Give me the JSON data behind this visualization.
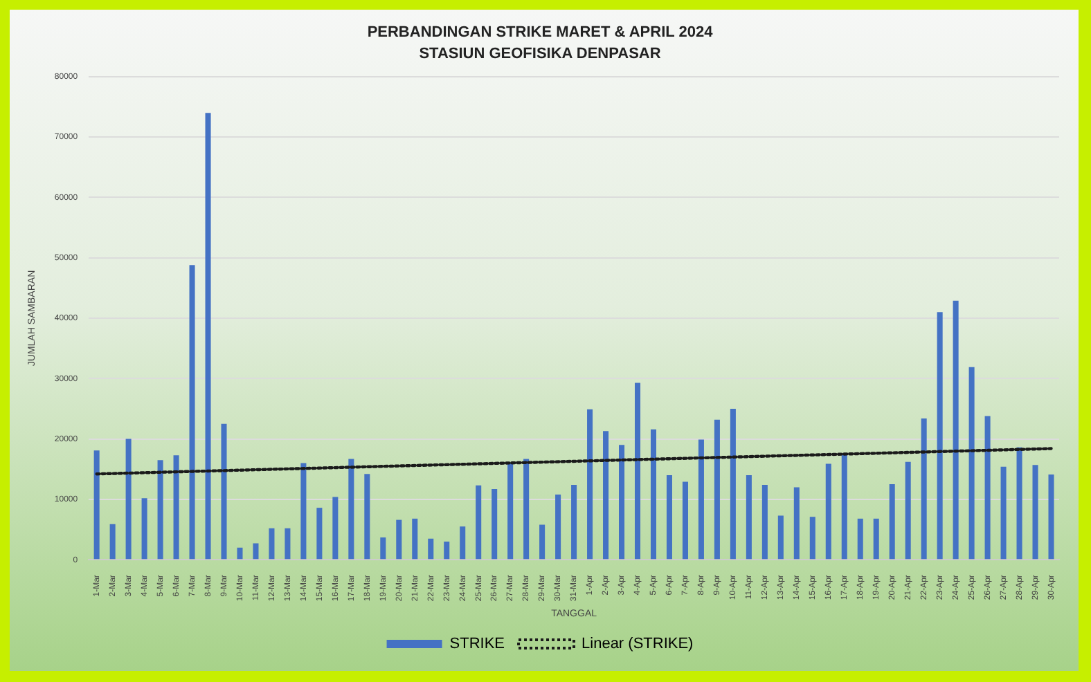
{
  "chart_data": {
    "type": "bar",
    "title": "PERBANDINGAN STRIKE MARET & APRIL 2024",
    "subtitle": "STASIUN GEOFISIKA DENPASAR",
    "xlabel": "TANGGAL",
    "ylabel": "JUMLAH SAMBARAN",
    "categories": [
      "1-Mar",
      "2-Mar",
      "3-Mar",
      "4-Mar",
      "5-Mar",
      "6-Mar",
      "7-Mar",
      "8-Mar",
      "9-Mar",
      "10-Mar",
      "11-Mar",
      "12-Mar",
      "13-Mar",
      "14-Mar",
      "15-Mar",
      "16-Mar",
      "17-Mar",
      "18-Mar",
      "19-Mar",
      "20-Mar",
      "21-Mar",
      "22-Mar",
      "23-Mar",
      "24-Mar",
      "25-Mar",
      "26-Mar",
      "27-Mar",
      "28-Mar",
      "29-Mar",
      "30-Mar",
      "31-Mar",
      "1-Apr",
      "2-Apr",
      "3-Apr",
      "4-Apr",
      "5-Apr",
      "6-Apr",
      "7-Apr",
      "8-Apr",
      "9-Apr",
      "10-Apr",
      "11-Apr",
      "12-Apr",
      "13-Apr",
      "14-Apr",
      "15-Apr",
      "16-Apr",
      "17-Apr",
      "18-Apr",
      "19-Apr",
      "20-Apr",
      "21-Apr",
      "22-Apr",
      "23-Apr",
      "24-Apr",
      "25-Apr",
      "26-Apr",
      "27-Apr",
      "28-Apr",
      "29-Apr",
      "30-Apr"
    ],
    "series": [
      {
        "name": "STRIKE",
        "color": "#4472c4",
        "values": [
          18100,
          5900,
          20000,
          10200,
          16500,
          17300,
          48800,
          74000,
          22500,
          2000,
          2700,
          5200,
          5200,
          16000,
          8600,
          10400,
          16700,
          14200,
          3700,
          6600,
          6800,
          3500,
          3000,
          5500,
          12300,
          11700,
          16000,
          16700,
          5800,
          10800,
          12400,
          24900,
          21300,
          19000,
          29300,
          21600,
          14000,
          12900,
          19900,
          23200,
          25000,
          14000,
          12400,
          7300,
          12000,
          7100,
          15900,
          17600,
          6800,
          6800,
          12500,
          16200,
          23400,
          41000,
          42900,
          31900,
          23800,
          15400,
          18600,
          15700,
          14100
        ]
      },
      {
        "name": "Linear (STRIKE)",
        "type": "line",
        "color": "#1a1a1a",
        "line_style": "dotted",
        "marker": "none",
        "x": [
          "1-Mar",
          "30-Apr"
        ],
        "values": [
          14200,
          18400
        ]
      }
    ],
    "ylim": [
      0,
      80000
    ],
    "yticks": [
      0,
      10000,
      20000,
      30000,
      40000,
      50000,
      60000,
      70000,
      80000
    ],
    "grid": "y",
    "legend": "bottom"
  }
}
